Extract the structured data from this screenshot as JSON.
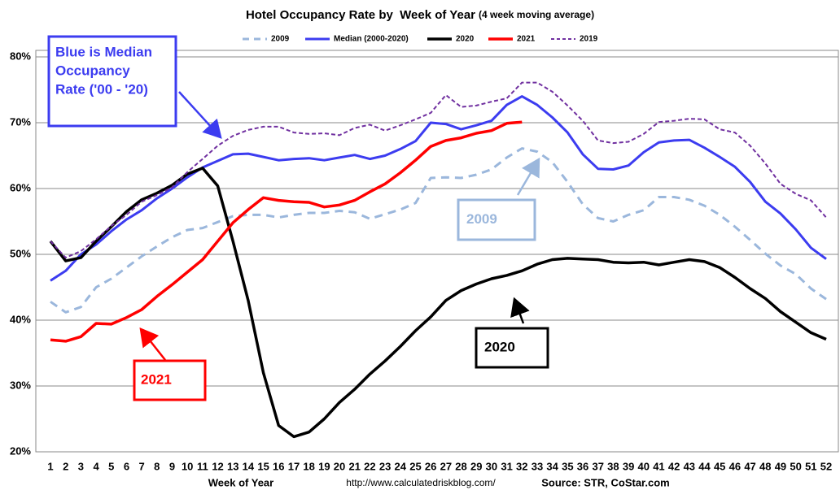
{
  "chart_data": {
    "type": "line",
    "title": "Hotel Occupancy Rate by  Week of Year",
    "subtitle": "(4 week moving average)",
    "x_label": "Week of Year",
    "url": "http://www.calculatedriskblog.com/",
    "source": "Source: STR, CoStar.com",
    "x": [
      1,
      2,
      3,
      4,
      5,
      6,
      7,
      8,
      9,
      10,
      11,
      12,
      13,
      14,
      15,
      16,
      17,
      18,
      19,
      20,
      21,
      22,
      23,
      24,
      25,
      26,
      27,
      28,
      29,
      30,
      31,
      32,
      33,
      34,
      35,
      36,
      37,
      38,
      39,
      40,
      41,
      42,
      43,
      44,
      45,
      46,
      47,
      48,
      49,
      50,
      51,
      52
    ],
    "xlim": [
      1,
      52
    ],
    "ylim": [
      20,
      80
    ],
    "yticks": [
      {
        "value": 20,
        "label": "20%"
      },
      {
        "value": 30,
        "label": "30%"
      },
      {
        "value": 40,
        "label": "40%"
      },
      {
        "value": 50,
        "label": "50%"
      },
      {
        "value": 60,
        "label": "60%"
      },
      {
        "value": 70,
        "label": "70%"
      },
      {
        "value": 80,
        "label": "80%"
      }
    ],
    "grid": true,
    "legend": "top",
    "series": [
      {
        "name": "2009",
        "color": "#9bb7dc",
        "dash": true,
        "width": 3,
        "values": [
          42.8,
          41.2,
          42,
          45,
          46.3,
          48,
          49.7,
          51.2,
          52.6,
          53.7,
          54,
          54.9,
          55.8,
          56,
          56,
          55.6,
          56,
          56.3,
          56.3,
          56.6,
          56.4,
          55.4,
          56.1,
          56.8,
          57.8,
          61.6,
          61.7,
          61.6,
          62.1,
          62.9,
          64.7,
          66.1,
          65.6,
          64,
          61,
          57.6,
          55.5,
          55,
          56,
          56.7,
          58.7,
          58.7,
          58.3,
          57.4,
          56,
          54.2,
          52.2,
          50.1,
          48.3,
          47,
          44.8,
          43.2
        ]
      },
      {
        "name": "Median (2000-2020)",
        "color": "#3c3cf0",
        "dash": false,
        "width": 3,
        "values": [
          46,
          47.5,
          50,
          51.5,
          53.5,
          55.3,
          56.7,
          58.5,
          60,
          61.7,
          63.2,
          64.2,
          65.2,
          65.3,
          64.8,
          64.3,
          64.5,
          64.6,
          64.3,
          64.7,
          65.1,
          64.5,
          65,
          66,
          67.2,
          70,
          69.8,
          69,
          69.6,
          70.3,
          72.7,
          74,
          72.7,
          70.8,
          68.5,
          65.2,
          63,
          62.9,
          63.5,
          65.5,
          67,
          67.3,
          67.4,
          66.2,
          64.8,
          63.3,
          61,
          58,
          56.2,
          53.8,
          51,
          49.3
        ]
      },
      {
        "name": "2020",
        "color": "#000000",
        "dash": false,
        "width": 3.5,
        "values": [
          52,
          49,
          49.5,
          52,
          54.2,
          56.5,
          58.3,
          59.3,
          60.5,
          62.2,
          63.1,
          60.4,
          52,
          43,
          32,
          24,
          22.3,
          23,
          25,
          27.5,
          29.5,
          31.8,
          33.8,
          36,
          38.4,
          40.5,
          43,
          44.5,
          45.5,
          46.3,
          46.8,
          47.5,
          48.5,
          49.2,
          49.4,
          49.3,
          49.2,
          48.8,
          48.7,
          48.8,
          48.4,
          48.8,
          49.2,
          48.9,
          48,
          46.5,
          44.8,
          43.3,
          41.3,
          39.7,
          38.1,
          37.1
        ]
      },
      {
        "name": "2021",
        "color": "#ff0000",
        "dash": false,
        "width": 3.5,
        "values": [
          37,
          36.8,
          37.5,
          39.5,
          39.4,
          40.4,
          41.6,
          43.6,
          45.4,
          47.3,
          49.2,
          52,
          54.8,
          56.8,
          58.6,
          58.2,
          58,
          57.9,
          57.2,
          57.5,
          58.2,
          59.5,
          60.7,
          62.4,
          64.3,
          66.4,
          67.3,
          67.7,
          68.4,
          68.8,
          69.9,
          70.1,
          null,
          null,
          null,
          null,
          null,
          null,
          null,
          null,
          null,
          null,
          null,
          null,
          null,
          null,
          null,
          null,
          null,
          null,
          null,
          null
        ]
      },
      {
        "name": "2019",
        "color": "#7030a0",
        "dash": true,
        "width": 2,
        "values": [
          52,
          49.5,
          50.5,
          52.3,
          54.3,
          56,
          58,
          59,
          60.2,
          62.5,
          64.5,
          66.5,
          68,
          68.9,
          69.4,
          69.4,
          68.5,
          68.3,
          68.4,
          68.1,
          69.2,
          69.7,
          68.8,
          69.6,
          70.5,
          71.5,
          74.2,
          72.4,
          72.6,
          73.2,
          73.7,
          76.1,
          76.1,
          74.7,
          72.6,
          70.3,
          67.3,
          66.9,
          67.1,
          68.3,
          70.1,
          70.3,
          70.6,
          70.5,
          69,
          68.5,
          66.5,
          63.8,
          60.7,
          59.2,
          58.2,
          55.6
        ]
      }
    ],
    "annotations": [
      {
        "lines": [
          "Blue is Median",
          "Occupancy",
          "Rate ('00 - '20)"
        ],
        "color": "#3c3cf0"
      },
      {
        "lines": [
          "2009"
        ],
        "color": "#9bb7dc"
      },
      {
        "lines": [
          "2020"
        ],
        "color": "#000000"
      },
      {
        "lines": [
          "2021"
        ],
        "color": "#ff0000"
      }
    ]
  }
}
